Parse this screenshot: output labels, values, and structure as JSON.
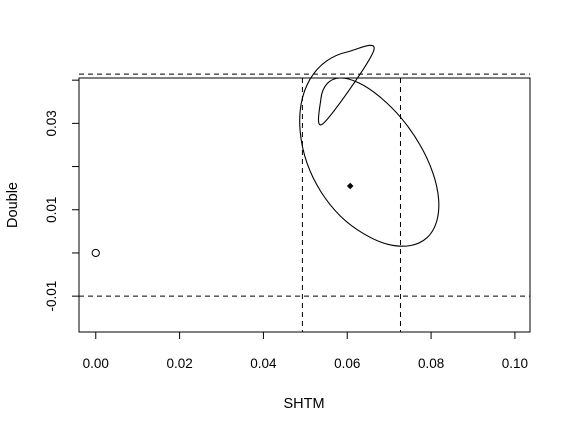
{
  "chart_data": {
    "type": "scatter",
    "title": "",
    "xlabel": "SHTM",
    "ylabel": "Double",
    "xlim": [
      -0.004,
      0.1036
    ],
    "ylim": [
      -0.0183,
      0.0405
    ],
    "x_ticks": [
      0.0,
      0.02,
      0.04,
      0.06,
      0.08,
      0.1
    ],
    "x_tick_labels": [
      "0.00",
      "0.02",
      "0.04",
      "0.06",
      "0.08",
      "0.10"
    ],
    "y_ticks": [
      -0.01,
      0.01,
      0.03
    ],
    "y_tick_labels": [
      "-0.01",
      "0.01",
      "0.03"
    ],
    "grid": false,
    "points": [
      {
        "x": 0.0,
        "y": 0.0,
        "marker": "open-circle"
      },
      {
        "x": 0.0607,
        "y": 0.0155,
        "marker": "filled-diamond"
      }
    ],
    "reference_lines": {
      "vertical": [
        0.0493,
        0.0727
      ],
      "horizontal": [
        -0.01,
        0.0414
      ],
      "style": "dashed"
    },
    "ellipse": {
      "center": [
        0.0607,
        0.0155
      ],
      "points": [
        [
          0.0663,
          0.0468
        ],
        [
          0.0603,
          0.0466
        ],
        [
          0.055,
          0.0444
        ],
        [
          0.0511,
          0.0402
        ],
        [
          0.049,
          0.0345
        ],
        [
          0.0488,
          0.0278
        ],
        [
          0.0504,
          0.0208
        ],
        [
          0.0537,
          0.0142
        ],
        [
          0.0584,
          0.0085
        ],
        [
          0.064,
          0.0044
        ],
        [
          0.0697,
          0.002
        ],
        [
          0.075,
          0.0017
        ],
        [
          0.079,
          0.0035
        ],
        [
          0.0813,
          0.0072
        ],
        [
          0.0818,
          0.0124
        ],
        [
          0.0804,
          0.0186
        ],
        [
          0.0773,
          0.0251
        ],
        [
          0.0729,
          0.0312
        ],
        [
          0.0677,
          0.0362
        ],
        [
          0.0627,
          0.0394
        ],
        [
          0.0583,
          0.0405
        ],
        [
          0.0552,
          0.0392
        ],
        [
          0.0537,
          0.0356
        ],
        [
          0.0543,
          0.03
        ]
      ]
    }
  },
  "colors": {
    "foreground": "#000000",
    "background": "#ffffff"
  }
}
